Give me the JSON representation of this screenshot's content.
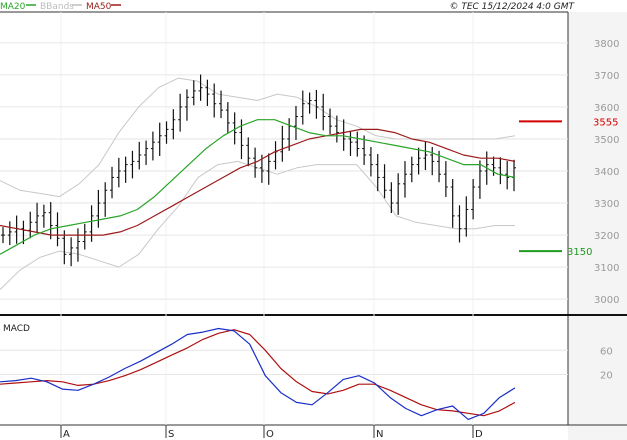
{
  "legend": [
    {
      "label": "MA20",
      "color": "#2aa52a"
    },
    {
      "label": "BBands",
      "color": "#bdbdbd"
    },
    {
      "label": "MA50",
      "color": "#9b1b1b"
    }
  ],
  "copyright": "© TEC 15/12/2024 4:0 GMT",
  "macd_label": "MACD",
  "chart_data": [
    {
      "type": "candlestick",
      "ylim": [
        2960,
        3890
      ],
      "y_ticks": [
        "3800",
        "3700",
        "3600",
        "3500",
        "3400",
        "3300",
        "3200",
        "3100",
        "3000"
      ],
      "x_ticks": [
        "A",
        "S",
        "O",
        "N",
        "D"
      ],
      "resistance": {
        "label": "3555",
        "value": 3555,
        "color": "#d40000"
      },
      "support": {
        "label": "3150",
        "value": 3150,
        "color": "#1f9a1f"
      },
      "close_series": [
        3200,
        3210,
        3220,
        3215,
        3240,
        3260,
        3270,
        3230,
        3190,
        3140,
        3160,
        3180,
        3210,
        3260,
        3300,
        3340,
        3380,
        3400,
        3420,
        3430,
        3450,
        3470,
        3490,
        3510,
        3530,
        3560,
        3600,
        3630,
        3650,
        3660,
        3640,
        3610,
        3590,
        3550,
        3520,
        3480,
        3440,
        3410,
        3400,
        3430,
        3460,
        3500,
        3540,
        3570,
        3610,
        3620,
        3600,
        3570,
        3540,
        3520,
        3500,
        3490,
        3470,
        3450,
        3420,
        3380,
        3340,
        3300,
        3360,
        3390,
        3420,
        3440,
        3450,
        3430,
        3390,
        3350,
        3260,
        3220,
        3280,
        3350,
        3400,
        3420,
        3410,
        3390,
        3380,
        3410
      ],
      "series": [
        {
          "name": "MA20",
          "values": [
            3140,
            3170,
            3200,
            3220,
            3230,
            3240,
            3250,
            3260,
            3280,
            3320,
            3370,
            3420,
            3470,
            3510,
            3540,
            3560,
            3560,
            3540,
            3520,
            3510,
            3510,
            3500,
            3490,
            3480,
            3470,
            3460,
            3440,
            3420,
            3420,
            3390,
            3380
          ]
        },
        {
          "name": "MA50",
          "values": [
            3230,
            3220,
            3210,
            3200,
            3200,
            3200,
            3200,
            3210,
            3230,
            3260,
            3290,
            3320,
            3350,
            3380,
            3410,
            3430,
            3460,
            3480,
            3500,
            3510,
            3520,
            3530,
            3530,
            3520,
            3500,
            3490,
            3470,
            3450,
            3440,
            3440,
            3430
          ]
        },
        {
          "name": "BBands upper",
          "values": [
            3370,
            3340,
            3330,
            3320,
            3360,
            3420,
            3520,
            3600,
            3660,
            3690,
            3680,
            3640,
            3630,
            3620,
            3640,
            3630,
            3600,
            3560,
            3540,
            3510,
            3500,
            3500,
            3500,
            3500,
            3500,
            3500,
            3510
          ]
        },
        {
          "name": "BBands lower",
          "values": [
            3030,
            3090,
            3130,
            3150,
            3140,
            3120,
            3100,
            3140,
            3220,
            3290,
            3380,
            3420,
            3430,
            3410,
            3390,
            3410,
            3420,
            3420,
            3420,
            3350,
            3260,
            3240,
            3230,
            3220,
            3220,
            3230,
            3230
          ]
        }
      ]
    },
    {
      "type": "line",
      "title": "MACD",
      "y_ticks": [
        "60",
        "20"
      ],
      "ylim": [
        -60,
        110
      ],
      "series": [
        {
          "name": "MACD",
          "values": [
            8,
            10,
            14,
            8,
            -4,
            -6,
            4,
            16,
            30,
            42,
            56,
            70,
            86,
            90,
            96,
            92,
            70,
            18,
            -10,
            -26,
            -30,
            -10,
            12,
            18,
            6,
            -18,
            -36,
            -48,
            -38,
            -32,
            -54,
            -44,
            -18,
            -2
          ]
        },
        {
          "name": "Signal",
          "values": [
            4,
            6,
            8,
            10,
            8,
            2,
            4,
            10,
            18,
            28,
            40,
            52,
            64,
            78,
            88,
            94,
            86,
            60,
            30,
            8,
            -8,
            -12,
            -6,
            4,
            4,
            -6,
            -18,
            -30,
            -38,
            -40,
            -44,
            -48,
            -40,
            -26
          ]
        }
      ]
    }
  ]
}
